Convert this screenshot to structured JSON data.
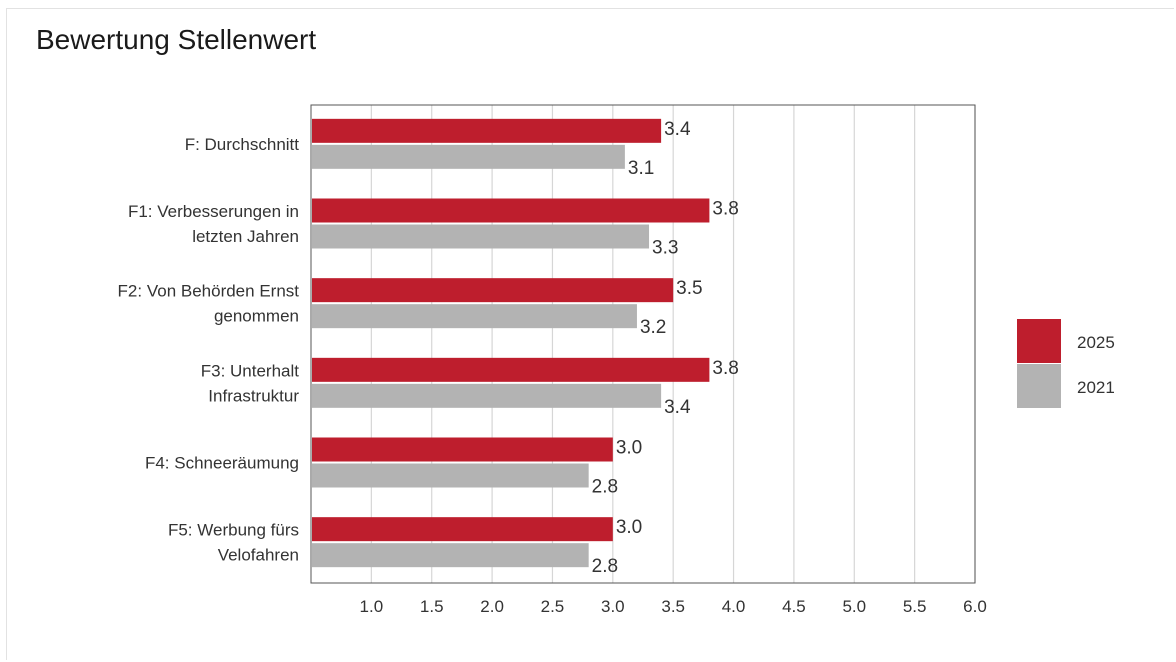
{
  "chart_data": {
    "type": "bar",
    "orientation": "horizontal",
    "title": "Bewertung Stellenwert",
    "categories": [
      [
        "F: Durchschnitt"
      ],
      [
        "F1: Verbesserungen in",
        "letzten Jahren"
      ],
      [
        "F2: Von Behörden Ernst",
        "genommen"
      ],
      [
        "F3: Unterhalt",
        "Infrastruktur"
      ],
      [
        "F4: Schneeräumung"
      ],
      [
        "F5: Werbung fürs",
        "Velofahren"
      ]
    ],
    "series": [
      {
        "name": "2025",
        "color": "#BE1E2D",
        "values": [
          3.4,
          3.8,
          3.5,
          3.8,
          3.0,
          3.0
        ],
        "labels": [
          "3.4",
          "3.8",
          "3.5",
          "3.8",
          "3.0",
          "3.0"
        ]
      },
      {
        "name": "2021",
        "color": "#B3B3B3",
        "values": [
          3.1,
          3.3,
          3.2,
          3.4,
          2.8,
          2.8
        ],
        "labels": [
          "3.1",
          "3.3",
          "3.2",
          "3.4",
          "2.8",
          "2.8"
        ]
      }
    ],
    "xlim": [
      0.5,
      6.0
    ],
    "xticks": [
      "1.0",
      "1.5",
      "2.0",
      "2.5",
      "3.0",
      "3.5",
      "4.0",
      "4.5",
      "5.0",
      "5.5",
      "6.0"
    ],
    "grid": true,
    "legend": "right"
  }
}
